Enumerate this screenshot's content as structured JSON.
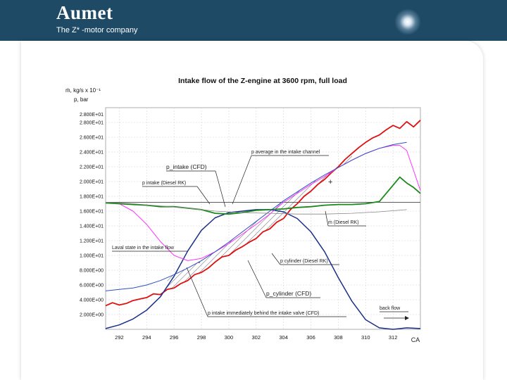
{
  "header": {
    "brand": "Aumet",
    "tagline": "The Z* -motor company",
    "bg_color": "#1e4a66"
  },
  "chart_data": {
    "type": "line",
    "title": "Intake flow of the Z-engine at 3600 rpm, full load",
    "ylabel_top": "ṁ, kg/s x 10⁻¹",
    "ylabel_bottom": "p, bar",
    "xlabel": "CA",
    "y_ticks": [
      "2.000E+00",
      "4.000E+00",
      "6.000E+00",
      "8.000E+00",
      "1.000E+01",
      "1.200E+01",
      "1.400E+01",
      "1.600E+01",
      "1.800E+01",
      "2.000E+01",
      "2.200E+01",
      "2.400E+01",
      "2.600E+01",
      "2.800E+01"
    ],
    "y_tick_values": [
      2,
      4,
      6,
      8,
      10,
      12,
      14,
      16,
      18,
      20,
      22,
      24,
      26,
      28
    ],
    "y_top_label": "2.800E+01",
    "ylim": [
      0,
      30
    ],
    "x_ticks": [
      "292",
      "294",
      "296",
      "298",
      "300",
      "302",
      "304",
      "306",
      "308",
      "310",
      "312"
    ],
    "x_tick_values": [
      292,
      294,
      296,
      298,
      300,
      302,
      304,
      306,
      308,
      310,
      312
    ],
    "xlim": [
      291,
      314
    ],
    "reference_line_y": 17.2,
    "series": [
      {
        "name": "p cylinder (Diesel RK)",
        "color": "#e01010",
        "x": [
          291.0,
          291.5,
          292.0,
          292.5,
          293.0,
          293.5,
          294.0,
          294.5,
          295.0,
          295.5,
          296.0,
          296.5,
          297.0,
          297.5,
          298.0,
          298.5,
          299.0,
          299.5,
          300.0,
          300.5,
          301.0,
          301.5,
          302.0,
          302.5,
          303.0,
          303.5,
          304.0,
          304.5,
          305.0,
          305.5,
          306.0,
          306.5,
          307.0,
          307.5,
          308.0,
          308.5,
          309.0,
          309.5,
          310.0,
          310.5,
          311.0,
          311.5,
          312.0,
          312.5,
          313.0,
          313.5,
          314.0
        ],
        "y": [
          3.2,
          3.6,
          3.3,
          3.5,
          3.9,
          4.1,
          4.3,
          4.8,
          4.7,
          5.4,
          5.6,
          6.2,
          6.6,
          7.4,
          7.7,
          8.3,
          9.1,
          9.8,
          10.0,
          10.7,
          11.2,
          11.8,
          12.3,
          13.2,
          13.6,
          14.5,
          15.0,
          16.2,
          17.0,
          18.0,
          18.7,
          19.6,
          20.3,
          21.2,
          22.0,
          23.0,
          23.8,
          24.6,
          25.3,
          25.9,
          26.3,
          27.0,
          27.6,
          27.2,
          28.1,
          27.4,
          28.3
        ]
      },
      {
        "name": "p_cylinder (CFD)",
        "color": "#1a2f8a",
        "x": [
          291,
          292,
          293,
          294,
          295,
          296,
          297,
          298,
          299,
          300,
          301,
          302,
          303,
          304,
          305,
          306,
          307,
          308,
          309,
          310,
          311,
          312,
          313,
          314
        ],
        "y": [
          0.1,
          0.6,
          1.4,
          2.6,
          4.4,
          7.2,
          10.6,
          13.4,
          15.1,
          15.8,
          16.0,
          16.2,
          16.2,
          15.9,
          15.0,
          13.2,
          10.5,
          7.0,
          3.8,
          1.3,
          0.2,
          0.0,
          0.2,
          0.1
        ]
      },
      {
        "name": "p intake (Diesel RK)",
        "color": "#ff33ff",
        "x": [
          291,
          292,
          293,
          294,
          295,
          296,
          297,
          298,
          299,
          300,
          301,
          302,
          303,
          304,
          305,
          306,
          307,
          308,
          309,
          310,
          311,
          312,
          312.5,
          313,
          314
        ],
        "y": [
          17.2,
          17.0,
          16.0,
          14.2,
          11.9,
          10.0,
          9.3,
          9.6,
          10.5,
          11.6,
          12.9,
          14.2,
          15.6,
          17.2,
          18.4,
          19.6,
          20.7,
          21.9,
          22.9,
          23.8,
          24.5,
          24.9,
          24.9,
          24.2,
          18.8
        ]
      },
      {
        "name": "p_intake (CFD)",
        "color": "#1a8a1a",
        "x": [
          291,
          292,
          293,
          294,
          295,
          296,
          297,
          298,
          299,
          300,
          301,
          302,
          303,
          304,
          305,
          306,
          307,
          308,
          309,
          310,
          311,
          312,
          312.5,
          313,
          313.5,
          314
        ],
        "y": [
          17.1,
          17.0,
          16.9,
          16.8,
          16.6,
          16.6,
          16.4,
          16.2,
          15.7,
          15.6,
          15.8,
          16.1,
          16.2,
          16.3,
          16.5,
          16.6,
          16.8,
          16.9,
          16.9,
          17.0,
          17.3,
          19.5,
          20.6,
          19.8,
          19.2,
          18.4
        ]
      },
      {
        "name": "p average in the intake channel",
        "color": "#3050c0",
        "x": [
          291,
          292,
          293,
          294,
          295,
          296,
          297,
          298,
          299,
          300,
          301,
          302,
          303,
          304,
          305,
          306,
          307,
          308,
          309,
          310,
          311,
          312,
          313
        ],
        "y": [
          5.2,
          5.4,
          5.6,
          6.0,
          6.6,
          7.4,
          8.3,
          9.3,
          10.5,
          11.8,
          13.2,
          14.6,
          16.0,
          17.4,
          18.6,
          19.8,
          20.9,
          21.9,
          22.9,
          23.8,
          24.5,
          25.0,
          25.3
        ]
      },
      {
        "name": "ṁ (Diesel RK)",
        "color": "#888888",
        "x": [
          291,
          293,
          295,
          297,
          299,
          301,
          303,
          305,
          307,
          309,
          311,
          313
        ],
        "y": [
          17.2,
          17.0,
          16.7,
          16.4,
          16.0,
          15.8,
          15.7,
          15.6,
          15.6,
          15.7,
          15.9,
          16.2
        ]
      }
    ],
    "annotations": [
      "p_intake (CFD)",
      "p intake (Diesel RK)",
      "p average in the intake channel",
      "ṁ (Diesel RK)",
      "Laval state in the intake flow",
      "p cylinder (Diesel RK)",
      "p_cylinder (CFD)",
      "p intake immediately behind the intake valve (CFD)",
      "back flow",
      "+",
      "-"
    ]
  }
}
